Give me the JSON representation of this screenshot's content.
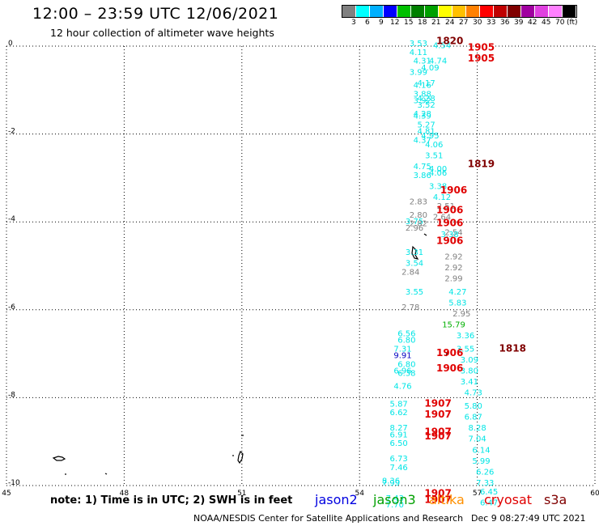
{
  "title": "12:00 – 23:59 UTC 12/06/2021",
  "subtitle": "12 hour collection of altimeter wave heights",
  "legend": {
    "colors": [
      "#808080",
      "#00ffff",
      "#00b0ff",
      "#0000ff",
      "#00c000",
      "#008000",
      "#00a000",
      "#ffff00",
      "#ffc000",
      "#ff8000",
      "#ff0000",
      "#c00000",
      "#800000",
      "#a000a0",
      "#e040e0",
      "#ff80ff",
      "#000000"
    ],
    "labels": [
      "3",
      "6",
      "9",
      "12",
      "15",
      "18",
      "21",
      "24",
      "27",
      "30",
      "33",
      "36",
      "39",
      "42",
      "45",
      "70",
      "(ft)"
    ]
  },
  "map": {
    "xlim": [
      45,
      60
    ],
    "ylim": [
      -10,
      0
    ],
    "x_ticks": [
      "45",
      "48",
      "51",
      "54",
      "57",
      "60"
    ],
    "y_ticks": [
      "0",
      "-2",
      "-4",
      "-6",
      "-8",
      "-10"
    ],
    "grid": "dotted"
  },
  "observations": [
    {
      "lon": 55.5,
      "lat": -0.0,
      "v": "3.53",
      "c": "#00e5e5"
    },
    {
      "lon": 56.1,
      "lat": -0.05,
      "v": "4.54",
      "c": "#00e5e5"
    },
    {
      "lon": 55.5,
      "lat": -0.2,
      "v": "4.11",
      "c": "#00e5e5"
    },
    {
      "lon": 55.6,
      "lat": -0.4,
      "v": "4.31",
      "c": "#00e5e5"
    },
    {
      "lon": 56.0,
      "lat": -0.4,
      "v": "4.74",
      "c": "#00e5e5"
    },
    {
      "lon": 55.8,
      "lat": -0.55,
      "v": "4.09",
      "c": "#00e5e5"
    },
    {
      "lon": 55.5,
      "lat": -0.65,
      "v": "3.99",
      "c": "#00e5e5"
    },
    {
      "lon": 55.7,
      "lat": -0.9,
      "v": "4.17",
      "c": "#00e5e5"
    },
    {
      "lon": 55.6,
      "lat": -0.95,
      "v": "4.16",
      "c": "#00e5e5"
    },
    {
      "lon": 55.6,
      "lat": -1.15,
      "v": "3.88",
      "c": "#00e5e5"
    },
    {
      "lon": 55.7,
      "lat": -1.25,
      "v": "4.28",
      "c": "#00e5e5"
    },
    {
      "lon": 55.6,
      "lat": -1.3,
      "v": "3.92",
      "c": "#00e5e5"
    },
    {
      "lon": 55.7,
      "lat": -1.4,
      "v": "3.52",
      "c": "#00e5e5"
    },
    {
      "lon": 55.6,
      "lat": -1.6,
      "v": "4.28",
      "c": "#00e5e5"
    },
    {
      "lon": 55.6,
      "lat": -1.65,
      "v": "4.39",
      "c": "#00e5e5"
    },
    {
      "lon": 55.7,
      "lat": -1.85,
      "v": "5.27",
      "c": "#00e5e5"
    },
    {
      "lon": 55.7,
      "lat": -2.0,
      "v": "4.81",
      "c": "#00e5e5"
    },
    {
      "lon": 55.8,
      "lat": -2.1,
      "v": "4.95",
      "c": "#00e5e5"
    },
    {
      "lon": 55.6,
      "lat": -2.2,
      "v": "4.37",
      "c": "#00e5e5"
    },
    {
      "lon": 55.9,
      "lat": -2.3,
      "v": "4.06",
      "c": "#00e5e5"
    },
    {
      "lon": 55.9,
      "lat": -2.55,
      "v": "3.51",
      "c": "#00e5e5"
    },
    {
      "lon": 55.6,
      "lat": -2.8,
      "v": "4.75",
      "c": "#00e5e5"
    },
    {
      "lon": 56.0,
      "lat": -2.85,
      "v": "4.00",
      "c": "#00e5e5"
    },
    {
      "lon": 55.6,
      "lat": -3.0,
      "v": "3.86",
      "c": "#00e5e5"
    },
    {
      "lon": 56.0,
      "lat": -2.95,
      "v": "4.06",
      "c": "#00e5e5"
    },
    {
      "lon": 56.0,
      "lat": -3.25,
      "v": "3.38",
      "c": "#00e5e5"
    },
    {
      "lon": 56.1,
      "lat": -3.5,
      "v": "4.12",
      "c": "#00e5e5"
    },
    {
      "lon": 55.5,
      "lat": -3.6,
      "v": "2.83",
      "c": "#808080"
    },
    {
      "lon": 56.2,
      "lat": -3.7,
      "v": "2.51",
      "c": "#808080"
    },
    {
      "lon": 55.5,
      "lat": -3.9,
      "v": "2.80",
      "c": "#808080"
    },
    {
      "lon": 56.1,
      "lat": -3.95,
      "v": "2.64",
      "c": "#808080"
    },
    {
      "lon": 55.4,
      "lat": -4.05,
      "v": "3.75",
      "c": "#00e5e5"
    },
    {
      "lon": 55.5,
      "lat": -4.1,
      "v": "2.82",
      "c": "#808080"
    },
    {
      "lon": 55.4,
      "lat": -4.2,
      "v": "2.96",
      "c": "#808080"
    },
    {
      "lon": 56.4,
      "lat": -4.3,
      "v": "2.54",
      "c": "#808080"
    },
    {
      "lon": 56.3,
      "lat": -4.35,
      "v": "3.38",
      "c": "#00e5e5"
    },
    {
      "lon": 55.4,
      "lat": -4.75,
      "v": "3.31",
      "c": "#00e5e5"
    },
    {
      "lon": 56.4,
      "lat": -4.85,
      "v": "2.92",
      "c": "#808080"
    },
    {
      "lon": 55.4,
      "lat": -5.0,
      "v": "3.54",
      "c": "#00e5e5"
    },
    {
      "lon": 56.4,
      "lat": -5.1,
      "v": "2.92",
      "c": "#808080"
    },
    {
      "lon": 55.3,
      "lat": -5.2,
      "v": "2.84",
      "c": "#808080"
    },
    {
      "lon": 56.4,
      "lat": -5.35,
      "v": "2.99",
      "c": "#808080"
    },
    {
      "lon": 55.4,
      "lat": -5.65,
      "v": "3.55",
      "c": "#00e5e5"
    },
    {
      "lon": 56.5,
      "lat": -5.65,
      "v": "4.27",
      "c": "#00e5e5"
    },
    {
      "lon": 56.5,
      "lat": -5.9,
      "v": "5.83",
      "c": "#00e5e5"
    },
    {
      "lon": 55.3,
      "lat": -6.0,
      "v": "2.78",
      "c": "#808080"
    },
    {
      "lon": 56.6,
      "lat": -6.15,
      "v": "2.95",
      "c": "#808080"
    },
    {
      "lon": 56.4,
      "lat": -6.4,
      "v": "15.79",
      "c": "#00b000"
    },
    {
      "lon": 55.2,
      "lat": -6.6,
      "v": "6.56",
      "c": "#00e5e5"
    },
    {
      "lon": 56.7,
      "lat": -6.65,
      "v": "3.36",
      "c": "#00e5e5"
    },
    {
      "lon": 55.2,
      "lat": -6.75,
      "v": "6.80",
      "c": "#00e5e5"
    },
    {
      "lon": 55.1,
      "lat": -6.95,
      "v": "7.31",
      "c": "#00e5e5"
    },
    {
      "lon": 56.7,
      "lat": -6.95,
      "v": "3.55",
      "c": "#00e5e5"
    },
    {
      "lon": 55.1,
      "lat": -7.1,
      "v": "9.91",
      "c": "#0000c0"
    },
    {
      "lon": 56.8,
      "lat": -7.2,
      "v": "3.09",
      "c": "#00e5e5"
    },
    {
      "lon": 55.2,
      "lat": -7.3,
      "v": "6.80",
      "c": "#00e5e5"
    },
    {
      "lon": 55.1,
      "lat": -7.45,
      "v": "6.96",
      "c": "#00e5e5"
    },
    {
      "lon": 55.2,
      "lat": -7.5,
      "v": "6.38",
      "c": "#00e5e5"
    },
    {
      "lon": 56.8,
      "lat": -7.45,
      "v": "3.80",
      "c": "#00e5e5"
    },
    {
      "lon": 56.8,
      "lat": -7.7,
      "v": "3.41",
      "c": "#00e5e5"
    },
    {
      "lon": 55.1,
      "lat": -7.8,
      "v": "4.76",
      "c": "#00e5e5"
    },
    {
      "lon": 56.9,
      "lat": -7.95,
      "v": "4.73",
      "c": "#00e5e5"
    },
    {
      "lon": 55.0,
      "lat": -8.2,
      "v": "5.87",
      "c": "#00e5e5"
    },
    {
      "lon": 56.9,
      "lat": -8.25,
      "v": "5.80",
      "c": "#00e5e5"
    },
    {
      "lon": 55.0,
      "lat": -8.4,
      "v": "6.62",
      "c": "#00e5e5"
    },
    {
      "lon": 56.9,
      "lat": -8.5,
      "v": "6.87",
      "c": "#00e5e5"
    },
    {
      "lon": 55.0,
      "lat": -8.75,
      "v": "8.27",
      "c": "#00e5e5"
    },
    {
      "lon": 57.0,
      "lat": -8.75,
      "v": "8.28",
      "c": "#00e5e5"
    },
    {
      "lon": 55.0,
      "lat": -8.9,
      "v": "6.91",
      "c": "#00e5e5"
    },
    {
      "lon": 57.0,
      "lat": -9.0,
      "v": "7.04",
      "c": "#00e5e5"
    },
    {
      "lon": 55.0,
      "lat": -9.1,
      "v": "6.50",
      "c": "#00e5e5"
    },
    {
      "lon": 57.1,
      "lat": -9.25,
      "v": "6.14",
      "c": "#00e5e5"
    },
    {
      "lon": 55.0,
      "lat": -9.45,
      "v": "6.73",
      "c": "#00e5e5"
    },
    {
      "lon": 57.1,
      "lat": -9.5,
      "v": "5.99",
      "c": "#00e5e5"
    },
    {
      "lon": 55.0,
      "lat": -9.65,
      "v": "7.46",
      "c": "#00e5e5"
    },
    {
      "lon": 57.2,
      "lat": -9.75,
      "v": "6.26",
      "c": "#00e5e5"
    },
    {
      "lon": 54.8,
      "lat": -9.95,
      "v": "8.36",
      "c": "#00e5e5"
    },
    {
      "lon": 54.8,
      "lat": -10.0,
      "v": "7.99",
      "c": "#00e5e5"
    },
    {
      "lon": 57.2,
      "lat": -10.0,
      "v": "7.33",
      "c": "#00e5e5"
    },
    {
      "lon": 57.3,
      "lat": -10.2,
      "v": "6.45",
      "c": "#00e5e5"
    },
    {
      "lon": 54.9,
      "lat": -10.35,
      "v": "7.43",
      "c": "#00e5e5"
    },
    {
      "lon": 54.9,
      "lat": -10.5,
      "v": "7.70",
      "c": "#00e5e5"
    },
    {
      "lon": 57.3,
      "lat": -10.45,
      "v": "6.47",
      "c": "#00e5e5"
    }
  ],
  "times": [
    {
      "lon": 56.3,
      "lat": 0.05,
      "v": "1820",
      "c": "#800000"
    },
    {
      "lon": 57.1,
      "lat": -0.1,
      "v": "1905",
      "c": "#e00000"
    },
    {
      "lon": 57.1,
      "lat": -0.35,
      "v": "1905",
      "c": "#e00000"
    },
    {
      "lon": 57.1,
      "lat": -2.75,
      "v": "1819",
      "c": "#800000"
    },
    {
      "lon": 56.4,
      "lat": -3.35,
      "v": "1906",
      "c": "#e00000"
    },
    {
      "lon": 56.3,
      "lat": -3.8,
      "v": "1906",
      "c": "#e00000"
    },
    {
      "lon": 56.3,
      "lat": -4.1,
      "v": "1906",
      "c": "#e00000"
    },
    {
      "lon": 56.3,
      "lat": -4.5,
      "v": "1906",
      "c": "#e00000"
    },
    {
      "lon": 57.9,
      "lat": -6.95,
      "v": "1818",
      "c": "#800000"
    },
    {
      "lon": 56.3,
      "lat": -7.05,
      "v": "1906",
      "c": "#e00000"
    },
    {
      "lon": 56.3,
      "lat": -7.4,
      "v": "1906",
      "c": "#e00000"
    },
    {
      "lon": 56.0,
      "lat": -8.2,
      "v": "1907",
      "c": "#e00000"
    },
    {
      "lon": 56.0,
      "lat": -8.45,
      "v": "1907",
      "c": "#e00000"
    },
    {
      "lon": 56.0,
      "lat": -8.85,
      "v": "1907",
      "c": "#e00000"
    },
    {
      "lon": 56.0,
      "lat": -8.95,
      "v": "1907",
      "c": "#e00000"
    },
    {
      "lon": 56.0,
      "lat": -10.25,
      "v": "1907",
      "c": "#e00000"
    },
    {
      "lon": 56.0,
      "lat": -10.4,
      "v": "1907",
      "c": "#e00000"
    }
  ],
  "note": "note:  1) Time is in UTC;  2) SWH is in feet",
  "satellites": [
    {
      "name": "jason2",
      "color": "#0000e0"
    },
    {
      "name": "jason3",
      "color": "#00a000"
    },
    {
      "name": "altika",
      "color": "#ff9000"
    },
    {
      "name": "cryosat",
      "color": "#e00000"
    },
    {
      "name": "s3a",
      "color": "#800000"
    }
  ],
  "footer_left": "NOAA/NESDIS Center for Satellite Applications and Research",
  "footer_right": "Dec  9 08:27:49 UTC 2021"
}
